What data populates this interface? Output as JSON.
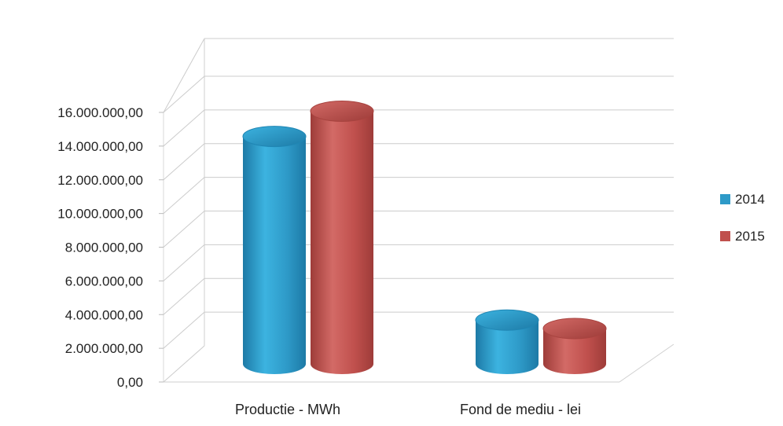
{
  "chart_data": {
    "type": "bar",
    "style": "3d-cylinder",
    "categories": [
      "Productie - MWh",
      "Fond de mediu - lei"
    ],
    "series": [
      {
        "name": "2014",
        "values": [
          13500000,
          2600000
        ],
        "color": "#2e9ac8"
      },
      {
        "name": "2015",
        "values": [
          15000000,
          2100000
        ],
        "color": "#c0504d"
      }
    ],
    "ylim": [
      0,
      16000000
    ],
    "y_ticks": [
      "0,00",
      "2.000.000,00",
      "4.000.000,00",
      "6.000.000,00",
      "8.000.000,00",
      "10.000.000,00",
      "12.000.000,00",
      "14.000.000,00",
      "16.000.000,00"
    ],
    "grid": true,
    "legend": "right",
    "title": "",
    "xlabel": "",
    "ylabel": ""
  }
}
